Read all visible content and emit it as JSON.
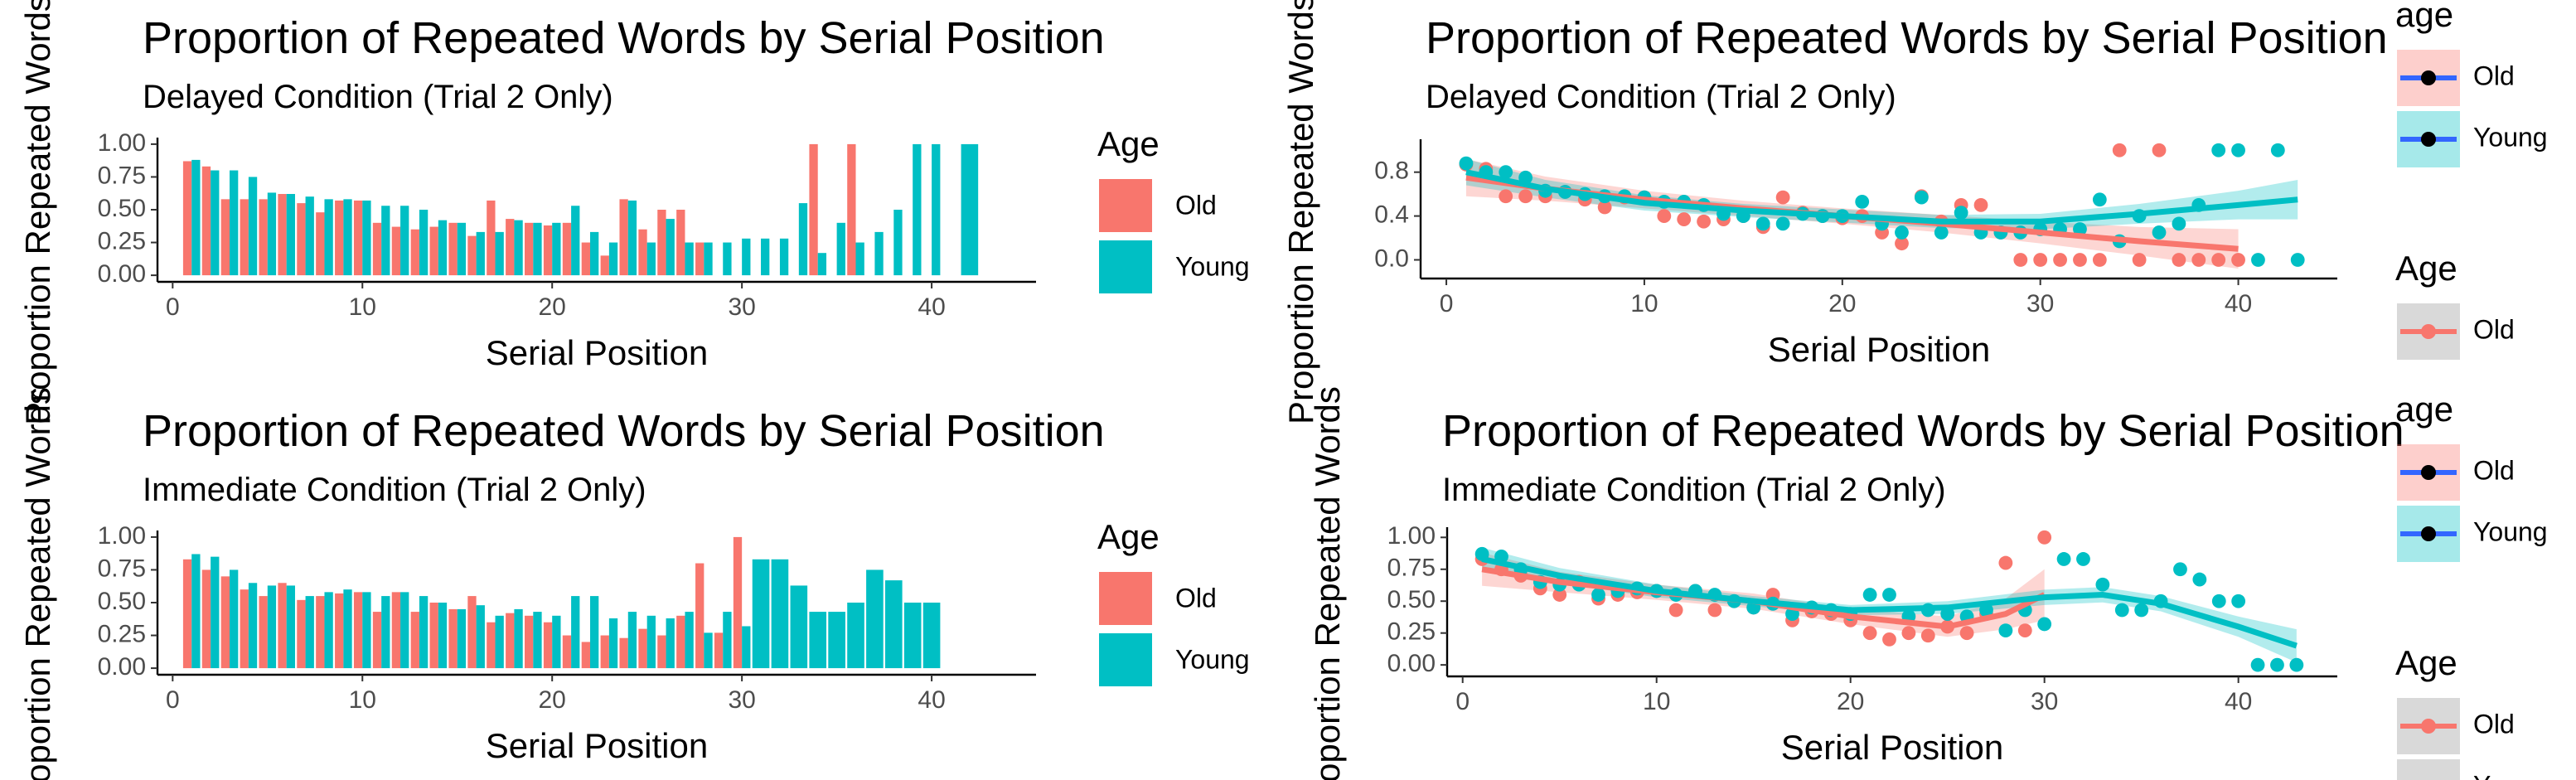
{
  "chart_data": [
    {
      "type": "bar",
      "title": "Proportion of Repeated Words by Serial Position",
      "subtitle": "Delayed Condition (Trial 2 Only)",
      "x_label": "Serial Position",
      "y_label": "Proportion Repeated Words",
      "x": [
        1,
        2,
        3,
        4,
        5,
        6,
        7,
        8,
        9,
        10,
        11,
        12,
        13,
        14,
        15,
        16,
        17,
        18,
        19,
        20,
        21,
        22,
        23,
        24,
        25,
        26,
        27,
        28,
        29,
        30,
        31,
        32,
        33,
        34,
        35,
        36,
        37,
        38,
        39,
        40,
        41,
        42
      ],
      "series": [
        {
          "name": "Old",
          "color": "#F8766D",
          "values": [
            0.87,
            0.83,
            0.58,
            0.58,
            0.58,
            0.62,
            0.55,
            0.48,
            0.57,
            0.57,
            0.4,
            0.37,
            0.35,
            0.37,
            0.4,
            0.3,
            0.57,
            0.43,
            0.4,
            0.38,
            0.4,
            0.25,
            0.15,
            0.58,
            0.35,
            0.5,
            0.5,
            0.25,
            0,
            0,
            0,
            0,
            0,
            1.0,
            0,
            1.0,
            0,
            0,
            0,
            0,
            null,
            null
          ]
        },
        {
          "name": "Young",
          "color": "#00BFC4",
          "values": [
            0.88,
            0.8,
            0.8,
            0.75,
            0.63,
            0.62,
            0.6,
            0.58,
            0.58,
            0.57,
            0.53,
            0.53,
            0.5,
            0.42,
            0.4,
            0.33,
            0.33,
            0.42,
            0.4,
            0.4,
            0.53,
            0.33,
            0.25,
            0.57,
            0.25,
            0.43,
            0.25,
            0.25,
            0.25,
            0.28,
            0.28,
            0.28,
            0.55,
            0.17,
            0.4,
            0.25,
            0.33,
            0.5,
            1.0,
            1.0,
            0,
            1.0
          ]
        }
      ],
      "xlim": [
        -0.8,
        45.5
      ],
      "xticks": [
        0,
        10,
        20,
        30,
        40
      ],
      "ylim": [
        -0.05,
        1.05
      ],
      "yticks": [
        {
          "value": 0,
          "label": "0.00"
        },
        0.25,
        {
          "value": 0.5,
          "label": "0.50"
        },
        0.75,
        {
          "value": 1,
          "label": "1.00"
        }
      ],
      "legend": {
        "title": "Age"
      }
    },
    {
      "type": "scatter",
      "title": "Proportion of Repeated Words by Serial Position",
      "subtitle": "Delayed Condition (Trial 2 Only)",
      "x_label": "Serial Position",
      "y_label": "Proportion Repeated Words",
      "x": [
        1,
        2,
        3,
        4,
        5,
        6,
        7,
        8,
        9,
        10,
        11,
        12,
        13,
        14,
        15,
        16,
        17,
        18,
        19,
        20,
        21,
        22,
        23,
        24,
        25,
        26,
        27,
        28,
        29,
        30,
        31,
        32,
        33,
        34,
        35,
        36,
        37,
        38,
        39,
        40,
        41,
        42,
        43
      ],
      "series": [
        {
          "name": "Old",
          "color": "#F8766D",
          "values": [
            0.87,
            0.83,
            0.58,
            0.58,
            0.58,
            0.62,
            0.55,
            0.48,
            0.57,
            0.57,
            0.4,
            0.37,
            0.35,
            0.37,
            0.4,
            0.3,
            0.57,
            0.43,
            0.4,
            0.38,
            0.4,
            0.25,
            0.15,
            0.58,
            0.35,
            0.5,
            0.5,
            0.25,
            0,
            0,
            0,
            0,
            0,
            1.0,
            0,
            1.0,
            0,
            0,
            0,
            0,
            null,
            null,
            null
          ]
        },
        {
          "name": "Young",
          "color": "#00BFC4",
          "values": [
            0.88,
            0.8,
            0.8,
            0.75,
            0.63,
            0.62,
            0.6,
            0.58,
            0.58,
            0.57,
            0.53,
            0.53,
            0.5,
            0.42,
            0.4,
            0.33,
            0.33,
            0.42,
            0.4,
            0.4,
            0.53,
            0.33,
            0.25,
            0.57,
            0.25,
            0.43,
            0.25,
            0.25,
            0.25,
            0.28,
            0.28,
            0.28,
            0.55,
            0.17,
            0.4,
            0.25,
            0.33,
            0.5,
            1.0,
            1.0,
            0,
            1.0,
            0
          ]
        }
      ],
      "smooth": [
        {
          "color": "#F8766D",
          "x": [
            1,
            5,
            10,
            15,
            20,
            25,
            30,
            35,
            40
          ],
          "values": [
            0.75,
            0.65,
            0.55,
            0.47,
            0.4,
            0.33,
            0.25,
            0.17,
            0.1
          ],
          "lower": [
            0.58,
            0.54,
            0.47,
            0.4,
            0.33,
            0.25,
            0.15,
            0.04,
            -0.08
          ],
          "upper": [
            0.92,
            0.76,
            0.63,
            0.54,
            0.47,
            0.41,
            0.35,
            0.3,
            0.28
          ]
        },
        {
          "color": "#00BFC4",
          "x": [
            1,
            5,
            10,
            15,
            20,
            25,
            30,
            35,
            40,
            43
          ],
          "values": [
            0.8,
            0.65,
            0.52,
            0.45,
            0.4,
            0.35,
            0.35,
            0.42,
            0.5,
            0.55
          ],
          "lower": [
            0.68,
            0.57,
            0.45,
            0.39,
            0.34,
            0.29,
            0.28,
            0.33,
            0.37,
            0.37
          ],
          "upper": [
            0.92,
            0.73,
            0.59,
            0.51,
            0.46,
            0.41,
            0.42,
            0.51,
            0.63,
            0.73
          ]
        }
      ],
      "xlim": [
        -1.3,
        45
      ],
      "xticks": [
        0,
        10,
        20,
        30,
        40
      ],
      "ylim": [
        -0.17,
        1.1
      ],
      "yticks": [
        {
          "value": 0,
          "label": "0.0"
        },
        0.4,
        0.8
      ],
      "legends": [
        {
          "title": "age",
          "labels": [
            "Old",
            "Young"
          ]
        },
        {
          "title": "Age",
          "labels": [
            "Old"
          ]
        }
      ]
    },
    {
      "type": "bar",
      "title": "Proportion of Repeated Words by Serial Position",
      "subtitle": "Immediate Condition (Trial 2 Only)",
      "x_label": "Serial Position",
      "y_label": "Proportion Repeated Words",
      "x": [
        1,
        2,
        3,
        4,
        5,
        6,
        7,
        8,
        9,
        10,
        11,
        12,
        13,
        14,
        15,
        16,
        17,
        18,
        19,
        20,
        21,
        22,
        23,
        24,
        25,
        26,
        27,
        28,
        29,
        30,
        31,
        32,
        33,
        34,
        35,
        36,
        37,
        38,
        39,
        40
      ],
      "series": [
        {
          "name": "Old",
          "color": "#F8766D",
          "values": [
            0.83,
            0.75,
            0.7,
            0.6,
            0.55,
            0.65,
            0.52,
            0.55,
            0.57,
            0.58,
            0.43,
            0.58,
            0.43,
            0.5,
            0.45,
            0.55,
            0.35,
            0.42,
            0.4,
            0.35,
            0.25,
            0.2,
            0.25,
            0.23,
            0.3,
            0.25,
            0.4,
            0.8,
            0.27,
            1.0,
            null,
            null,
            null,
            null,
            null,
            null,
            null,
            null,
            null,
            null
          ]
        },
        {
          "name": "Young",
          "color": "#00BFC4",
          "values": [
            0.87,
            0.85,
            0.75,
            0.65,
            0.63,
            0.63,
            0.55,
            0.58,
            0.6,
            0.58,
            0.55,
            0.58,
            0.55,
            0.5,
            0.45,
            0.48,
            0.4,
            0.45,
            0.43,
            0.4,
            0.55,
            0.55,
            0.38,
            0.43,
            0.4,
            0.38,
            0.43,
            0.27,
            0.43,
            0.32,
            0.83,
            0.83,
            0.63,
            0.43,
            0.43,
            0.5,
            0.75,
            0.67,
            0.5,
            0.5
          ]
        }
      ],
      "xlim": [
        -0.8,
        45.5
      ],
      "xticks": [
        0,
        10,
        20,
        30,
        40
      ],
      "ylim": [
        -0.05,
        1.05
      ],
      "yticks": [
        {
          "value": 0,
          "label": "0.00"
        },
        0.25,
        {
          "value": 0.5,
          "label": "0.50"
        },
        0.75,
        {
          "value": 1,
          "label": "1.00"
        }
      ],
      "legend": {
        "title": "Age"
      }
    },
    {
      "type": "scatter",
      "title": "Proportion of Repeated Words by Serial Position",
      "subtitle": "Immediate Condition (Trial 2 Only)",
      "x_label": "Serial Position",
      "y_label": "Proportion Repeated Words",
      "x": [
        1,
        2,
        3,
        4,
        5,
        6,
        7,
        8,
        9,
        10,
        11,
        12,
        13,
        14,
        15,
        16,
        17,
        18,
        19,
        20,
        21,
        22,
        23,
        24,
        25,
        26,
        27,
        28,
        29,
        30,
        31,
        32,
        33,
        34,
        35,
        36,
        37,
        38,
        39,
        40,
        41,
        42,
        43
      ],
      "series": [
        {
          "name": "Old",
          "color": "#F8766D",
          "values": [
            0.83,
            0.75,
            0.7,
            0.6,
            0.55,
            0.65,
            0.52,
            0.55,
            0.57,
            0.58,
            0.43,
            0.58,
            0.43,
            0.5,
            0.45,
            0.55,
            0.35,
            0.42,
            0.4,
            0.35,
            0.25,
            0.2,
            0.25,
            0.23,
            0.3,
            0.25,
            0.4,
            0.8,
            0.27,
            1.0,
            null,
            null,
            null,
            null,
            null,
            null,
            null,
            null,
            null,
            null,
            null,
            null,
            null
          ]
        },
        {
          "name": "Young",
          "color": "#00BFC4",
          "values": [
            0.87,
            0.85,
            0.75,
            0.65,
            0.63,
            0.63,
            0.55,
            0.58,
            0.6,
            0.58,
            0.55,
            0.58,
            0.55,
            0.5,
            0.45,
            0.48,
            0.4,
            0.45,
            0.43,
            0.4,
            0.55,
            0.55,
            0.38,
            0.43,
            0.4,
            0.38,
            0.43,
            0.27,
            0.43,
            0.32,
            0.83,
            0.83,
            0.63,
            0.43,
            0.43,
            0.5,
            0.75,
            0.67,
            0.5,
            0.5,
            0,
            0,
            0
          ]
        }
      ],
      "smooth": [
        {
          "color": "#F8766D",
          "x": [
            1,
            5,
            10,
            15,
            20,
            25,
            28,
            30
          ],
          "values": [
            0.75,
            0.65,
            0.57,
            0.5,
            0.38,
            0.3,
            0.4,
            0.55
          ],
          "lower": [
            0.62,
            0.57,
            0.51,
            0.44,
            0.32,
            0.22,
            0.28,
            0.35
          ],
          "upper": [
            0.88,
            0.73,
            0.63,
            0.56,
            0.44,
            0.38,
            0.52,
            0.75
          ]
        },
        {
          "color": "#00BFC4",
          "x": [
            1,
            5,
            10,
            15,
            20,
            25,
            30,
            33,
            36,
            40,
            43
          ],
          "values": [
            0.83,
            0.7,
            0.58,
            0.5,
            0.43,
            0.45,
            0.53,
            0.55,
            0.48,
            0.3,
            0.15
          ],
          "lower": [
            0.74,
            0.64,
            0.53,
            0.46,
            0.39,
            0.4,
            0.47,
            0.49,
            0.42,
            0.22,
            0.02
          ],
          "upper": [
            0.92,
            0.76,
            0.63,
            0.54,
            0.47,
            0.5,
            0.59,
            0.61,
            0.54,
            0.38,
            0.28
          ]
        }
      ],
      "xlim": [
        -0.8,
        45.1
      ],
      "xticks": [
        0,
        10,
        20,
        30,
        40
      ],
      "ylim": [
        -0.09,
        1.08
      ],
      "yticks": [
        {
          "value": 0,
          "label": "0.00"
        },
        0.25,
        {
          "value": 0.5,
          "label": "0.50"
        },
        0.75,
        {
          "value": 1,
          "label": "1.00"
        }
      ],
      "legends": [
        {
          "title": "age",
          "labels": [
            "Old",
            "Young"
          ]
        },
        {
          "title": "Age",
          "labels": [
            "Old",
            "Young"
          ]
        }
      ]
    }
  ]
}
